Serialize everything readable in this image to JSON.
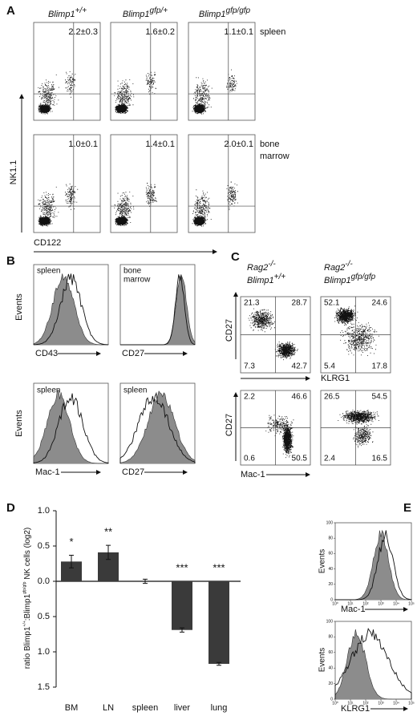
{
  "panel_a": {
    "label": "A",
    "columns": [
      {
        "base": "Blimp1",
        "sup": "+/+"
      },
      {
        "base": "Blimp1",
        "sup": "gfp/+"
      },
      {
        "base": "Blimp1",
        "sup": "gfp/gfp"
      }
    ],
    "rows": [
      {
        "label": [
          "spleen"
        ],
        "values": [
          "2.2±0.3",
          "1.6±0.2",
          "1.1±0.1"
        ]
      },
      {
        "label": [
          "bone",
          "marrow"
        ],
        "values": [
          "1.0±0.1",
          "1.4±0.1",
          "2.0±0.1"
        ]
      }
    ],
    "y_label": "NK1.1",
    "x_label": "CD122"
  },
  "panel_b": {
    "label": "B",
    "plots": [
      {
        "tissue": [
          "spleen"
        ],
        "marker": "CD43"
      },
      {
        "tissue": [
          "bone",
          "marrow"
        ],
        "marker": "CD27"
      },
      {
        "tissue": [
          "spleen"
        ],
        "marker": "Mac-1"
      },
      {
        "tissue": [
          "spleen"
        ],
        "marker": "CD27"
      }
    ],
    "y_label": "Events"
  },
  "panel_c": {
    "label": "C",
    "columns": [
      [
        {
          "base": "Rag2",
          "sup": "-/-"
        },
        {
          "base": "Blimp1",
          "sup": "+/+"
        }
      ],
      [
        {
          "base": "Rag2",
          "sup": "-/-"
        },
        {
          "base": "Blimp1",
          "sup": "gfp/gfp"
        }
      ]
    ],
    "rows": [
      {
        "x_label": "KLRG1",
        "quadrants": [
          [
            "21.3",
            "28.7",
            "7.3",
            "42.7"
          ],
          [
            "52.1",
            "24.6",
            "5.4",
            "17.8"
          ]
        ]
      },
      {
        "x_label": "Mac-1",
        "quadrants": [
          [
            "2.2",
            "46.6",
            "0.6",
            "50.5"
          ],
          [
            "26.5",
            "54.5",
            "2.4",
            "16.5"
          ]
        ]
      }
    ],
    "y_label": "CD27"
  },
  "chart_data": {
    "type": "bar",
    "panel_label": "D",
    "y_label": [
      {
        "text": "ratio Blimp1"
      },
      {
        "text": "+/+",
        "sup": true
      },
      {
        "text": ":Blimp1"
      },
      {
        "text": "gfp/gfp",
        "sup": true
      },
      {
        "text": " NK cells (log2)"
      }
    ],
    "categories": [
      "BM",
      "LN",
      "spleen",
      "liver",
      "lung"
    ],
    "values": [
      0.28,
      0.41,
      0.0,
      -0.69,
      -1.17
    ],
    "errors": [
      0.09,
      0.1,
      0.03,
      0.03,
      0.02
    ],
    "annotations": [
      "*",
      "**",
      null,
      "***",
      "***"
    ],
    "color": "#3a3a3a",
    "ylim": [
      -1.5,
      1.0
    ],
    "yticks": [
      {
        "value": 1.0,
        "label": "1.0"
      },
      {
        "value": 0.5,
        "label": "0.5"
      },
      {
        "value": 0.0,
        "label": "0.0"
      },
      {
        "value": -0.5,
        "label": "0.5"
      },
      {
        "value": -1.0,
        "label": "1.0"
      },
      {
        "value": -1.5,
        "label": "1.5"
      }
    ]
  },
  "panel_e": {
    "label": "E",
    "y_label": "Events",
    "markers": [
      "Mac-1",
      "KLRG1"
    ],
    "yticks": [
      0,
      20,
      40,
      60,
      80,
      100
    ],
    "xticks": [
      {
        "value": 1,
        "label": "10⁰"
      },
      {
        "value": 10,
        "label": "10¹"
      },
      {
        "value": 100,
        "label": "10²"
      },
      {
        "value": 1000,
        "label": "10³"
      },
      {
        "value": 10000,
        "label": "10⁴"
      },
      {
        "value": 100000,
        "label": "10⁵"
      }
    ]
  }
}
